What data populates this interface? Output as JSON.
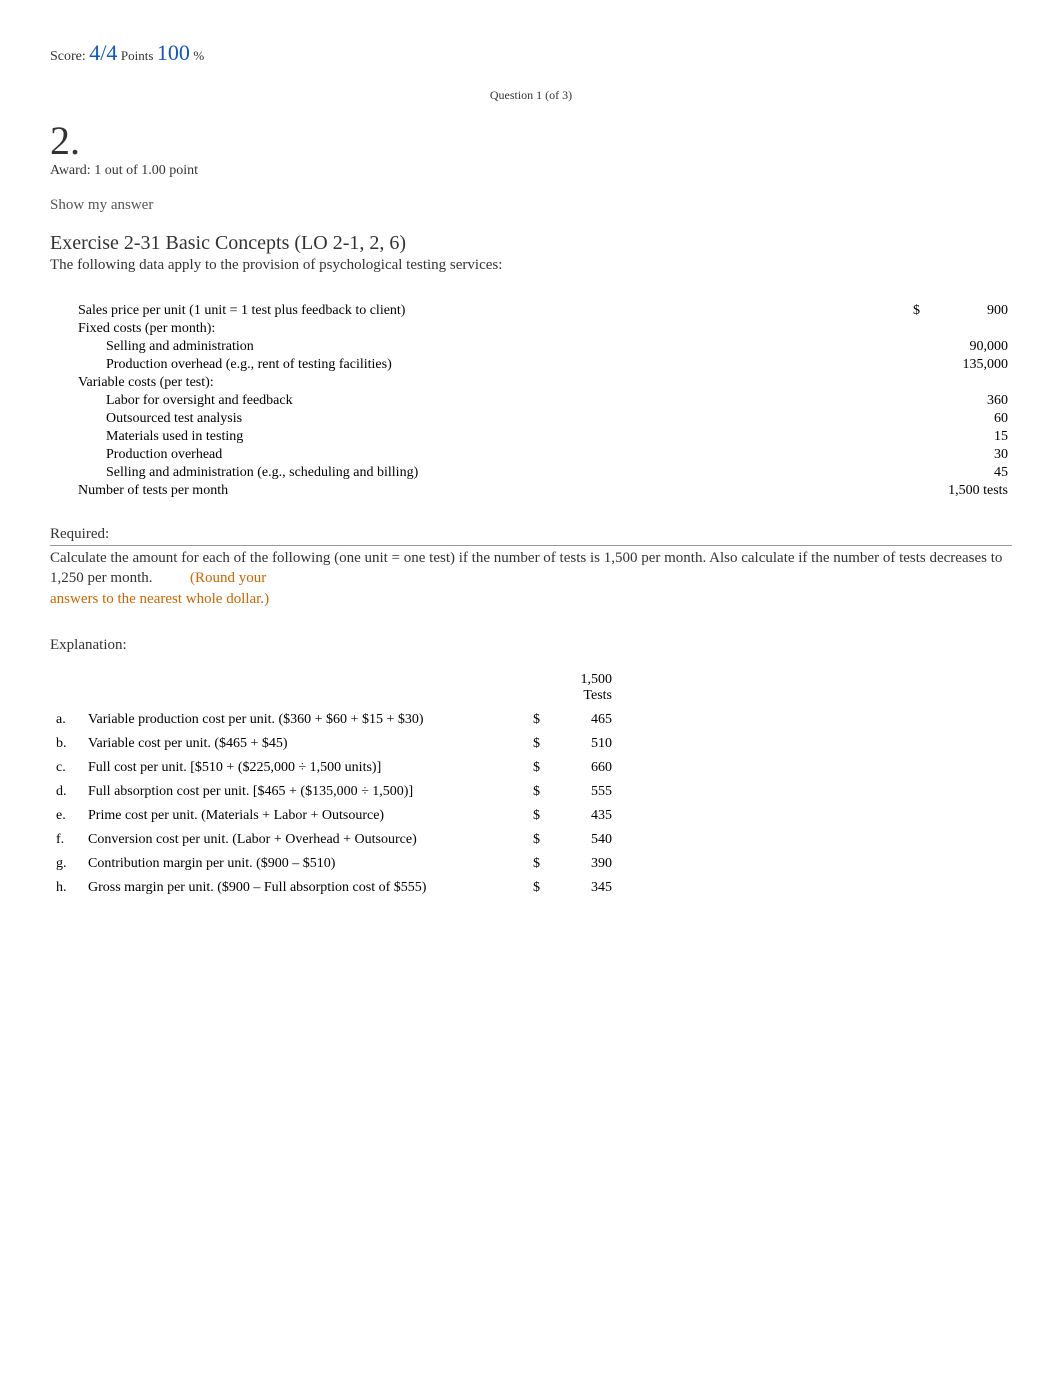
{
  "score": {
    "label": "Score:",
    "fraction": "4/4",
    "points_label": "Points",
    "percent": "100",
    "percent_label": "%"
  },
  "question_header": "Question 1 (of 3)",
  "question_number": "2.",
  "award_line": "Award:  1 out of 1.00 point",
  "show_my_answer": "Show my answer",
  "exercise": {
    "title": "Exercise 2-31 Basic Concepts (LO 2-1, 2, 6)",
    "subtitle": "The following data apply to the provision of psychological testing services:"
  },
  "data_table": {
    "currency": "$",
    "rows": [
      {
        "label": "Sales price per unit (1 unit = 1 test plus feedback to client)",
        "indent": 1,
        "cur": "$",
        "value": "900"
      },
      {
        "label": "Fixed costs (per month):",
        "indent": 1,
        "cur": "",
        "value": ""
      },
      {
        "label": "Selling and administration",
        "indent": 2,
        "cur": "",
        "value": "90,000"
      },
      {
        "label": "Production overhead (e.g., rent of testing facilities)",
        "indent": 2,
        "cur": "",
        "value": "135,000"
      },
      {
        "label": "Variable costs (per test):",
        "indent": 1,
        "cur": "",
        "value": ""
      },
      {
        "label": "Labor for oversight and feedback",
        "indent": 2,
        "cur": "",
        "value": "360"
      },
      {
        "label": "Outsourced test analysis",
        "indent": 2,
        "cur": "",
        "value": "60"
      },
      {
        "label": "Materials used in testing",
        "indent": 2,
        "cur": "",
        "value": "15"
      },
      {
        "label": "Production overhead",
        "indent": 2,
        "cur": "",
        "value": "30"
      },
      {
        "label": "Selling and administration (e.g., scheduling and billing)",
        "indent": 2,
        "cur": "",
        "value": "45"
      },
      {
        "label": "Number of tests per month",
        "indent": 1,
        "cur": "",
        "value": "1,500 tests"
      }
    ]
  },
  "required": {
    "heading": "Required:",
    "body_a": "Calculate the amount for each of the following (one unit = one test) if the number of tests is 1,500 per month. Also calculate if the number of tests decreases to 1,250 per month.",
    "round_a": "(Round your",
    "round_b": "answers to the nearest whole dollar.)"
  },
  "explanation": {
    "heading": "Explanation:",
    "col_header": "1,500 Tests",
    "currency": "$",
    "rows": [
      {
        "letter": "a.",
        "desc": "Variable production cost per unit. ($360 + $60 + $15 + $30)",
        "value": "465"
      },
      {
        "letter": "b.",
        "desc": "Variable cost per unit. ($465 + $45)",
        "value": "510"
      },
      {
        "letter": "c.",
        "desc": "Full cost per unit. [$510 + ($225,000 ÷ 1,500 units)]",
        "value": "660"
      },
      {
        "letter": "d.",
        "desc": "Full absorption cost per unit. [$465 + ($135,000 ÷ 1,500)]",
        "value": "555"
      },
      {
        "letter": "e.",
        "desc": "Prime cost per unit. (Materials + Labor + Outsource)",
        "value": "435"
      },
      {
        "letter": "f.",
        "desc": "Conversion cost per unit. (Labor + Overhead + Outsource)",
        "value": "540"
      },
      {
        "letter": "g.",
        "desc": "Contribution margin per unit. ($900 – $510)",
        "value": "390"
      },
      {
        "letter": "h.",
        "desc": "Gross margin per unit. ($900 – Full absorption cost of $555)",
        "value": "345"
      }
    ]
  },
  "colors": {
    "link_blue": "#1155cc",
    "orange": "#cc6600",
    "text": "#000000",
    "muted": "#555555"
  }
}
